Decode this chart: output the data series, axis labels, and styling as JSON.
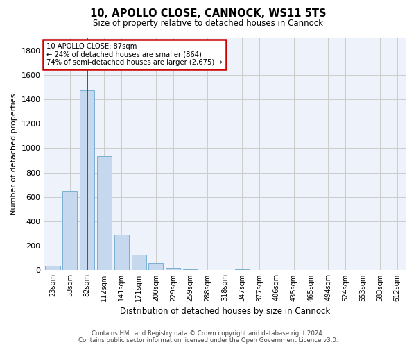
{
  "title": "10, APOLLO CLOSE, CANNOCK, WS11 5TS",
  "subtitle": "Size of property relative to detached houses in Cannock",
  "xlabel": "Distribution of detached houses by size in Cannock",
  "ylabel": "Number of detached properties",
  "categories": [
    "23sqm",
    "53sqm",
    "82sqm",
    "112sqm",
    "141sqm",
    "171sqm",
    "200sqm",
    "229sqm",
    "259sqm",
    "288sqm",
    "318sqm",
    "347sqm",
    "377sqm",
    "406sqm",
    "435sqm",
    "465sqm",
    "494sqm",
    "524sqm",
    "553sqm",
    "583sqm",
    "612sqm"
  ],
  "values": [
    38,
    650,
    1475,
    935,
    290,
    125,
    60,
    22,
    10,
    0,
    0,
    10,
    0,
    0,
    0,
    0,
    0,
    0,
    0,
    0,
    0
  ],
  "bar_color": "#c5d8ed",
  "bar_edge_color": "#7aafd4",
  "highlight_bar_index": 2,
  "highlight_line_color": "#cc0000",
  "annotation_text_line1": "10 APOLLO CLOSE: 87sqm",
  "annotation_text_line2": "← 24% of detached houses are smaller (864)",
  "annotation_text_line3": "74% of semi-detached houses are larger (2,675) →",
  "annotation_box_edgecolor": "#cc0000",
  "annotation_fill": "#ffffff",
  "ylim": [
    0,
    1900
  ],
  "yticks": [
    0,
    200,
    400,
    600,
    800,
    1000,
    1200,
    1400,
    1600,
    1800
  ],
  "grid_color": "#cccccc",
  "bg_color": "#eef2fa",
  "footer_line1": "Contains HM Land Registry data © Crown copyright and database right 2024.",
  "footer_line2": "Contains public sector information licensed under the Open Government Licence v3.0."
}
